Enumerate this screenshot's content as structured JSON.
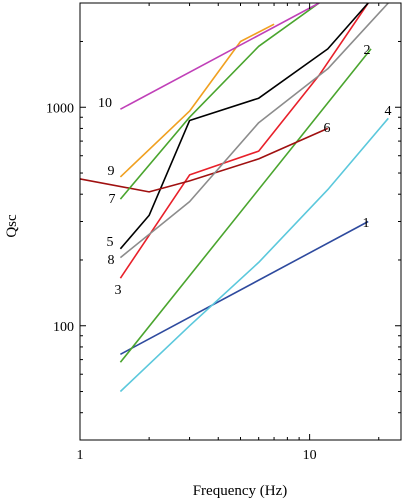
{
  "chart_data": {
    "type": "line",
    "title": "",
    "xlabel": "Frequency (Hz)",
    "ylabel": "Qsc",
    "x_scale": "log",
    "y_scale": "log",
    "xlim": [
      1,
      25
    ],
    "ylim": [
      30,
      3000
    ],
    "x_ticks": [
      {
        "value": 1,
        "label": "1"
      },
      {
        "value": 10,
        "label": "10"
      }
    ],
    "y_ticks": [
      {
        "value": 100,
        "label": "100"
      },
      {
        "value": 1000,
        "label": "1000"
      }
    ],
    "grid": false,
    "legend": "none",
    "series": [
      {
        "name": "1",
        "color": "#2e4a9e",
        "x": [
          1.5,
          18
        ],
        "y": [
          74,
          300
        ]
      },
      {
        "name": "2",
        "color": "#4aa52e",
        "x": [
          1.5,
          18.5
        ],
        "y": [
          68,
          1850
        ]
      },
      {
        "name": "3",
        "color": "#e8202a",
        "x": [
          1.5,
          3,
          6,
          11,
          18
        ],
        "y": [
          165,
          490,
          630,
          1400,
          3000
        ]
      },
      {
        "name": "4",
        "color": "#5bc8dc",
        "x": [
          1.5,
          3,
          6,
          12,
          22
        ],
        "y": [
          50,
          100,
          195,
          420,
          890
        ]
      },
      {
        "name": "5",
        "color": "#000000",
        "x": [
          1.5,
          2,
          3,
          6,
          12,
          18
        ],
        "y": [
          225,
          320,
          870,
          1100,
          1850,
          3000
        ]
      },
      {
        "name": "6",
        "color": "#a01010",
        "x": [
          1,
          2,
          3,
          6,
          12
        ],
        "y": [
          470,
          410,
          460,
          580,
          800
        ]
      },
      {
        "name": "7",
        "color": "#4aa52e",
        "x": [
          1.5,
          3,
          6,
          11
        ],
        "y": [
          380,
          900,
          1900,
          3000
        ]
      },
      {
        "name": "8",
        "color": "#8c8c8c",
        "x": [
          1.5,
          3,
          6,
          12,
          22
        ],
        "y": [
          205,
          370,
          850,
          1500,
          3000
        ]
      },
      {
        "name": "9",
        "color": "#f0a020",
        "x": [
          1.5,
          3,
          5,
          7
        ],
        "y": [
          480,
          960,
          2000,
          2400
        ]
      },
      {
        "name": "10",
        "color": "#c040b8",
        "x": [
          1.5,
          11
        ],
        "y": [
          980,
          3000
        ]
      }
    ]
  }
}
